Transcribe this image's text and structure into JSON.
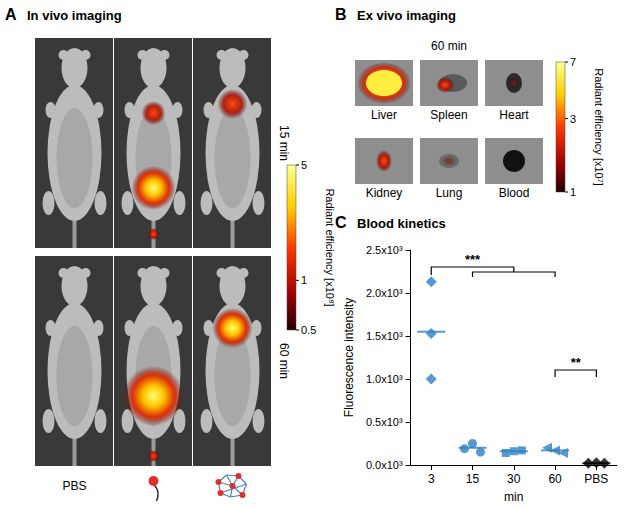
{
  "panels": [
    {
      "letter": "A",
      "title": "In vivo imaging",
      "rows": [
        "15 min",
        "60 min"
      ],
      "column_label": "PBS",
      "colorbar": {
        "title": "Radiant efficiency [x10⁸]",
        "range": [
          0.5,
          5
        ],
        "ticks": [
          5,
          1,
          0.5
        ],
        "log": true
      }
    },
    {
      "letter": "B",
      "title": "Ex vivo imaging",
      "time": "60 min",
      "organs": [
        "Liver",
        "Spleen",
        "Heart",
        "Kidney",
        "Lung",
        "Blood"
      ],
      "colorbar": {
        "title": "Radiant efficiency [x10⁷]",
        "range": [
          1,
          7
        ],
        "ticks": [
          7,
          3,
          1
        ],
        "log": true
      }
    }
  ],
  "chart_data": {
    "letter": "C",
    "title": "Blood kinetics",
    "type": "scatter",
    "categories": [
      "3",
      "15",
      "30",
      "60",
      "PBS"
    ],
    "x_label": "min",
    "y_label": "Fluorescence intensity",
    "ylim": [
      0,
      2500
    ],
    "yticks": [
      {
        "value": 0,
        "label": "0.0x10³"
      },
      {
        "value": 500,
        "label": "0.5x10³"
      },
      {
        "value": 1000,
        "label": "1.0x10³"
      },
      {
        "value": 1500,
        "label": "1.5x10³"
      },
      {
        "value": 2000,
        "label": "2.0x10³"
      },
      {
        "value": 2500,
        "label": "2.5x10³"
      }
    ],
    "grid": false,
    "groups": [
      {
        "category": "3",
        "values": [
          2130,
          1530,
          1000
        ],
        "mean": 1550,
        "marker": "diamond",
        "color": "#2a7fc4"
      },
      {
        "category": "15",
        "values": [
          190,
          250,
          150
        ],
        "mean": 200,
        "marker": "circle",
        "color": "#2a7fc4"
      },
      {
        "category": "30",
        "values": [
          140,
          160,
          170
        ],
        "mean": 160,
        "marker": "square",
        "color": "#2a7fc4"
      },
      {
        "category": "60",
        "values": [
          200,
          170,
          140
        ],
        "mean": 170,
        "marker": "triangle-left",
        "color": "#2a7fc4"
      },
      {
        "category": "PBS",
        "values": [
          20,
          25,
          20
        ],
        "mean": 20,
        "marker": "diamond",
        "color": "#000000"
      }
    ],
    "annotations": [
      {
        "text": "***",
        "from": "3",
        "to": [
          "15",
          "30",
          "60"
        ]
      },
      {
        "text": "**",
        "from": "60",
        "to": [
          "PBS"
        ]
      }
    ]
  }
}
